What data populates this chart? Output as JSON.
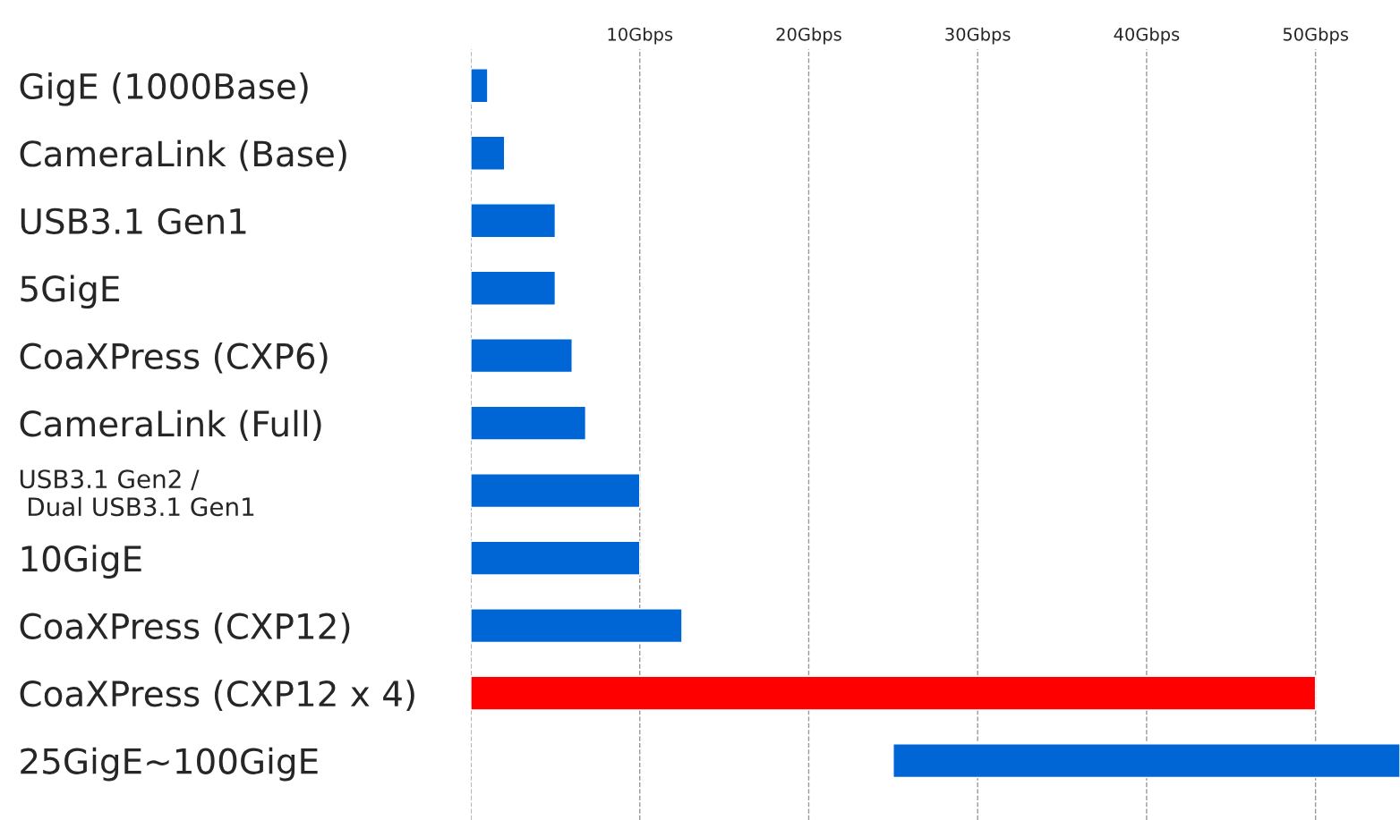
{
  "chart_data": {
    "type": "bar",
    "orientation": "horizontal",
    "categories": [
      "GigE (1000Base)",
      "CameraLink (Base)",
      "USB3.1 Gen1",
      "5GigE",
      "CoaXPress (CXP6)",
      "CameraLink (Full)",
      "USB3.1 Gen2 /\n Dual USB3.1 Gen1",
      "10GigE",
      "CoaXPress (CXP12)",
      "CoaXPress (CXP12 x 4)",
      "25GigE~100GigE"
    ],
    "values": [
      1,
      2,
      5,
      5,
      6,
      6.8,
      10,
      10,
      12.5,
      50,
      30
    ],
    "base": [
      0,
      0,
      0,
      0,
      0,
      0,
      0,
      0,
      0,
      0,
      25
    ],
    "colors": [
      "#0066d6",
      "#0066d6",
      "#0066d6",
      "#0066d6",
      "#0066d6",
      "#0066d6",
      "#0066d6",
      "#0066d6",
      "#0066d6",
      "#ff0000",
      "#0066d6"
    ],
    "xlim": [
      0,
      55
    ],
    "xticks": [
      {
        "value": 0,
        "label": null
      },
      {
        "value": 10,
        "label": "10Gbps"
      },
      {
        "value": 20,
        "label": "20Gbps"
      },
      {
        "value": 30,
        "label": "30Gbps"
      },
      {
        "value": 40,
        "label": "40Gbps"
      },
      {
        "value": 50,
        "label": "50Gbps"
      }
    ],
    "grid": "x",
    "legend": false
  }
}
